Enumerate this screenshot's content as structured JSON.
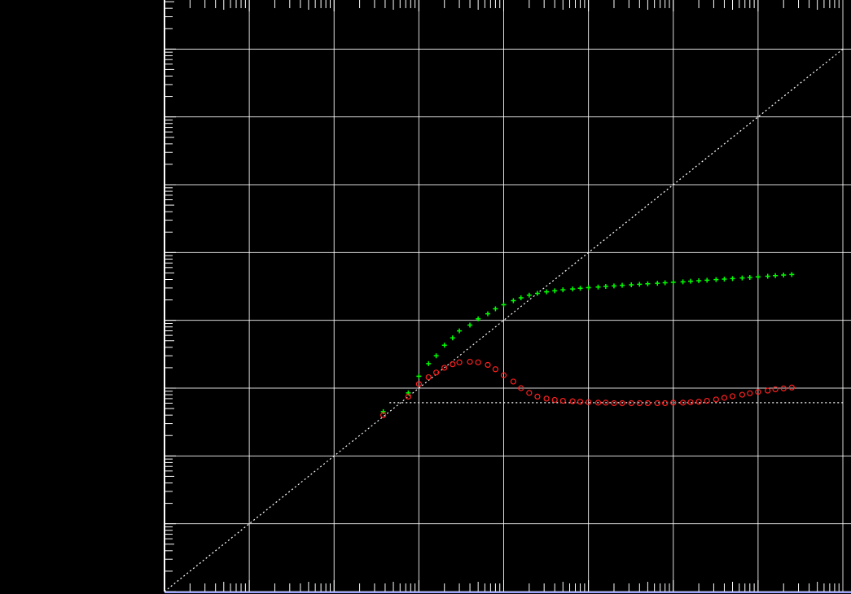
{
  "chart_data": {
    "type": "scatter",
    "title": "",
    "xlabel": "",
    "ylabel": "",
    "xscale": "log",
    "yscale": "log",
    "xlim": [
      0.001,
      100000
    ],
    "ylim": [
      0.001,
      1000000
    ],
    "grid": true,
    "colors": {
      "background": "#000000",
      "grid": "#ffffff",
      "axis": "#ffffff",
      "bottom_axis": "#9da2ff",
      "green_series": "#00ff00",
      "red_series": "#ff2020",
      "reference_lines": "#ffffff"
    },
    "series": [
      {
        "name": "green-plus-series",
        "marker": "plus",
        "color": "#00ff00",
        "x": [
          0.38,
          0.75,
          1.0,
          1.3,
          1.6,
          2.0,
          2.5,
          3.0,
          4.0,
          5.0,
          6.5,
          8.0,
          10,
          13,
          16,
          20,
          25,
          32,
          40,
          50,
          65,
          80,
          100,
          130,
          160,
          200,
          250,
          320,
          400,
          500,
          650,
          800,
          1000,
          1300,
          1600,
          2000,
          2500,
          3200,
          4000,
          5000,
          6500,
          8000,
          10000,
          13000,
          16000,
          20000,
          25000
        ],
        "y": [
          0.45,
          0.85,
          1.5,
          2.3,
          3.0,
          4.3,
          5.5,
          7.0,
          8.5,
          10.5,
          12.5,
          14.8,
          17,
          19.5,
          21.5,
          23.5,
          25,
          26.3,
          27.3,
          28.2,
          29,
          29.7,
          30.3,
          31,
          31.6,
          32.2,
          32.8,
          33.4,
          34,
          34.6,
          35.2,
          35.8,
          36.4,
          37,
          37.7,
          38.4,
          39.1,
          39.8,
          40.5,
          41.3,
          42.1,
          42.9,
          43.8,
          44.7,
          45.6,
          46.5,
          47.4
        ]
      },
      {
        "name": "red-circle-series",
        "marker": "circle",
        "color": "#ff2020",
        "x": [
          0.38,
          0.75,
          1.0,
          1.3,
          1.6,
          2.0,
          2.5,
          3.0,
          4.0,
          5.0,
          6.5,
          8.0,
          10,
          13,
          16,
          20,
          25,
          32,
          40,
          50,
          65,
          80,
          100,
          130,
          160,
          200,
          250,
          320,
          400,
          500,
          650,
          800,
          1000,
          1300,
          1600,
          2000,
          2500,
          3200,
          4000,
          5000,
          6500,
          8000,
          10000,
          13000,
          16000,
          20000,
          25000
        ],
        "y": [
          0.4,
          0.75,
          1.15,
          1.45,
          1.7,
          2.0,
          2.25,
          2.4,
          2.45,
          2.4,
          2.2,
          1.9,
          1.55,
          1.25,
          1.0,
          0.85,
          0.75,
          0.7,
          0.67,
          0.65,
          0.64,
          0.63,
          0.62,
          0.61,
          0.61,
          0.6,
          0.6,
          0.6,
          0.6,
          0.6,
          0.6,
          0.6,
          0.61,
          0.61,
          0.62,
          0.63,
          0.65,
          0.68,
          0.72,
          0.76,
          0.8,
          0.84,
          0.88,
          0.92,
          0.96,
          0.99,
          1.02
        ]
      }
    ],
    "reference_lines": [
      {
        "name": "unit-slope-line",
        "style": "dotted",
        "x": [
          0.001,
          100000
        ],
        "y": [
          0.001,
          100000
        ]
      },
      {
        "name": "horizontal-plateau-line",
        "style": "dotted",
        "x": [
          0.45,
          100000
        ],
        "y": [
          0.61,
          0.61
        ]
      }
    ]
  }
}
